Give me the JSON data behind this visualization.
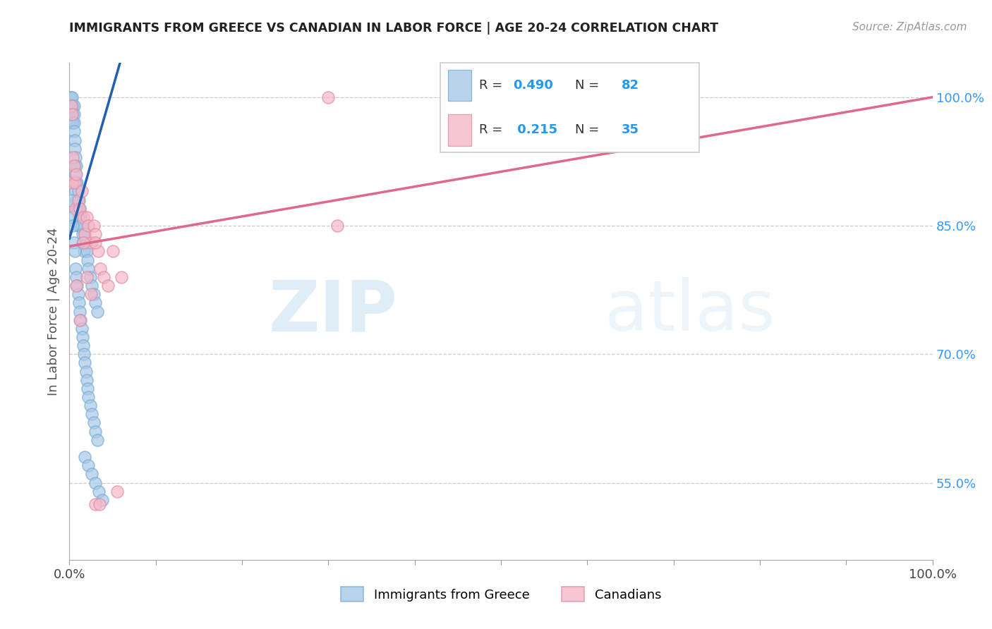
{
  "title": "IMMIGRANTS FROM GREECE VS CANADIAN IN LABOR FORCE | AGE 20-24 CORRELATION CHART",
  "source": "Source: ZipAtlas.com",
  "ylabel": "In Labor Force | Age 20-24",
  "legend_label1": "Immigrants from Greece",
  "legend_label2": "Canadians",
  "r1": 0.49,
  "n1": 82,
  "r2": 0.215,
  "n2": 35,
  "watermark_zip": "ZIP",
  "watermark_atlas": "atlas",
  "ytick_labels": [
    "55.0%",
    "70.0%",
    "85.0%",
    "100.0%"
  ],
  "ytick_values": [
    0.55,
    0.7,
    0.85,
    1.0
  ],
  "xtick_values": [
    0.0,
    0.1,
    0.2,
    0.3,
    0.4,
    0.5,
    0.6,
    0.7,
    0.8,
    0.9,
    1.0
  ],
  "blue_scatter_color": "#a8c8e8",
  "blue_edge_color": "#7bafd4",
  "blue_line_color": "#2060b0",
  "pink_scatter_color": "#f4b8c8",
  "pink_edge_color": "#e090a8",
  "pink_line_color": "#e06888",
  "xmin": 0.0,
  "xmax": 1.0,
  "ymin": 0.46,
  "ymax": 1.04,
  "blue_x": [
    0.001,
    0.001,
    0.002,
    0.002,
    0.002,
    0.003,
    0.003,
    0.003,
    0.003,
    0.004,
    0.004,
    0.004,
    0.005,
    0.005,
    0.005,
    0.005,
    0.006,
    0.006,
    0.006,
    0.007,
    0.007,
    0.007,
    0.008,
    0.008,
    0.008,
    0.009,
    0.009,
    0.01,
    0.01,
    0.01,
    0.011,
    0.011,
    0.012,
    0.012,
    0.013,
    0.014,
    0.015,
    0.015,
    0.016,
    0.017,
    0.018,
    0.019,
    0.02,
    0.021,
    0.022,
    0.024,
    0.026,
    0.028,
    0.03,
    0.032,
    0.002,
    0.003,
    0.004,
    0.005,
    0.006,
    0.007,
    0.008,
    0.009,
    0.01,
    0.011,
    0.012,
    0.013,
    0.014,
    0.015,
    0.016,
    0.017,
    0.018,
    0.019,
    0.02,
    0.021,
    0.022,
    0.024,
    0.026,
    0.028,
    0.03,
    0.032,
    0.018,
    0.022,
    0.026,
    0.03,
    0.034,
    0.038
  ],
  "blue_y": [
    1.0,
    0.99,
    1.0,
    0.99,
    0.98,
    1.0,
    0.99,
    0.98,
    0.97,
    0.99,
    0.98,
    0.97,
    0.99,
    0.98,
    0.97,
    0.96,
    0.95,
    0.94,
    0.92,
    0.93,
    0.91,
    0.89,
    0.92,
    0.9,
    0.88,
    0.9,
    0.87,
    0.89,
    0.87,
    0.85,
    0.88,
    0.86,
    0.87,
    0.85,
    0.86,
    0.85,
    0.84,
    0.83,
    0.83,
    0.82,
    0.84,
    0.83,
    0.82,
    0.81,
    0.8,
    0.79,
    0.78,
    0.77,
    0.76,
    0.75,
    0.88,
    0.86,
    0.85,
    0.83,
    0.82,
    0.8,
    0.79,
    0.78,
    0.77,
    0.76,
    0.75,
    0.74,
    0.73,
    0.72,
    0.71,
    0.7,
    0.69,
    0.68,
    0.67,
    0.66,
    0.65,
    0.64,
    0.63,
    0.62,
    0.61,
    0.6,
    0.58,
    0.57,
    0.56,
    0.55,
    0.54,
    0.53
  ],
  "pink_x": [
    0.002,
    0.003,
    0.003,
    0.004,
    0.005,
    0.006,
    0.007,
    0.008,
    0.01,
    0.012,
    0.014,
    0.016,
    0.018,
    0.02,
    0.022,
    0.025,
    0.028,
    0.03,
    0.033,
    0.036,
    0.04,
    0.045,
    0.02,
    0.025,
    0.03,
    0.05,
    0.06,
    0.008,
    0.012,
    0.016,
    0.3,
    0.31,
    0.03,
    0.055,
    0.035
  ],
  "pink_y": [
    0.99,
    0.98,
    0.9,
    0.93,
    0.92,
    0.9,
    0.87,
    0.91,
    0.88,
    0.87,
    0.89,
    0.86,
    0.84,
    0.86,
    0.85,
    0.83,
    0.85,
    0.84,
    0.82,
    0.8,
    0.79,
    0.78,
    0.79,
    0.77,
    0.83,
    0.82,
    0.79,
    0.78,
    0.74,
    0.83,
    1.0,
    0.85,
    0.525,
    0.54,
    0.525
  ]
}
